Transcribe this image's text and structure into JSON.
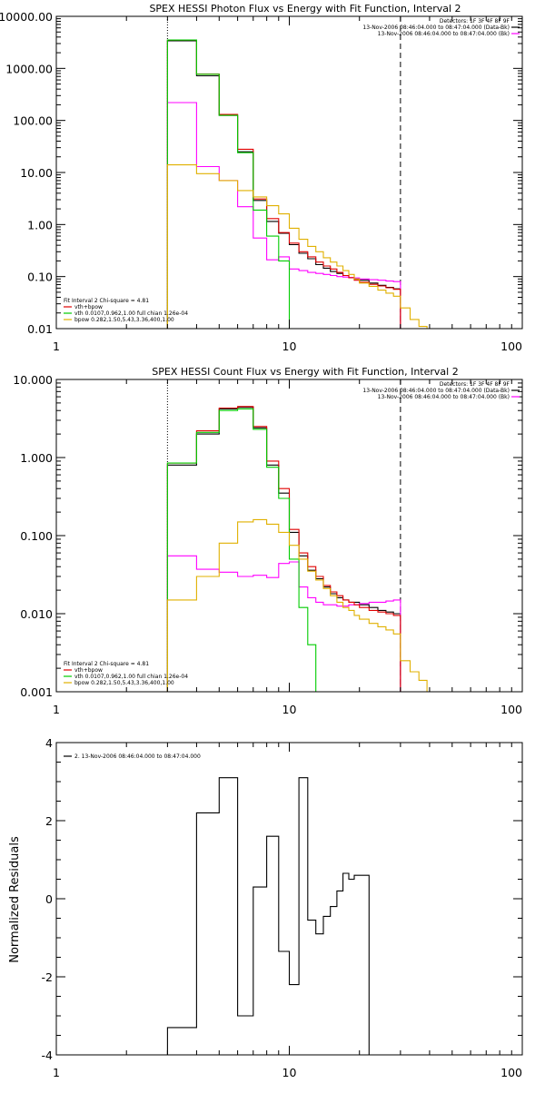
{
  "colors": {
    "axes": "#000000",
    "data": "#000000",
    "total": "#e00000",
    "vth": "#00cc00",
    "bpow": "#e0b000",
    "background": "#ff00ff"
  },
  "chart_data": [
    {
      "type": "line",
      "title": "SPEX HESSI Photon Flux vs Energy with Fit Function, Interval 2",
      "xscale": "log",
      "yscale": "log",
      "xlim": [
        1,
        100
      ],
      "ylim": [
        0.01,
        10000
      ],
      "xticks": [
        "1",
        "10",
        "100"
      ],
      "yticks": [
        {
          "v": 0.01,
          "label": "0.01"
        },
        {
          "v": 0.1,
          "label": "0.10"
        },
        {
          "v": 1,
          "label": "1.00"
        },
        {
          "v": 10,
          "label": "10.00"
        },
        {
          "v": 100,
          "label": "100.00"
        },
        {
          "v": 1000,
          "label": "1000.00"
        },
        {
          "v": 10000,
          "label": "10000.00"
        }
      ],
      "vlines": [
        {
          "x": 3,
          "style": "dotted"
        },
        {
          "x": 30,
          "style": "dashed"
        }
      ],
      "legend_tr": [
        "Detectors: 1F 3F 4F 8F 9F",
        "13-Nov-2006 08:46:04.000 to 08:47:04.000 (Data-Bk)",
        "13-Nov-2006 08:46:04.000 to 08:47:04.000 (Bk)"
      ],
      "legend_bl": [
        "Fit Interval 2   Chi-square = 4.81",
        "vth+bpow",
        "vth 0.0107,0.962,1.00  full chian 1.26e-04",
        "bpow 0.282,1.50,5.43,3.36,400,1.00"
      ],
      "edges": [
        3,
        4,
        5,
        6,
        7,
        8,
        9,
        10,
        11,
        12,
        13,
        14,
        15,
        16,
        17,
        18,
        19,
        20,
        22,
        24,
        26,
        28,
        30
      ],
      "series": [
        {
          "name": "13-Nov-2006 08:46:04.000 to 08:47:04.000 (Data-Bk)",
          "color": "#000000",
          "values": [
            3400,
            720,
            125,
            25,
            2.9,
            1.15,
            0.68,
            0.41,
            0.28,
            0.22,
            0.17,
            0.145,
            0.125,
            0.115,
            0.105,
            0.095,
            0.09,
            0.085,
            0.075,
            0.068,
            0.062,
            0.058
          ]
        },
        {
          "name": "13-Nov-2006 08:46:04.000 to 08:47:04.000 (Bk)",
          "color": "#ff00ff",
          "values": [
            220,
            13,
            7,
            2.2,
            0.55,
            0.21,
            0.24,
            0.14,
            0.13,
            0.12,
            0.115,
            0.11,
            0.105,
            0.1,
            0.098,
            0.096,
            0.094,
            0.09,
            0.087,
            0.085,
            0.082,
            0.08
          ]
        },
        {
          "name": "vth+bpow",
          "color": "#e00000",
          "values": [
            3500,
            780,
            130,
            28,
            3.1,
            1.3,
            0.7,
            0.44,
            0.3,
            0.24,
            0.19,
            0.16,
            0.14,
            0.12,
            0.105,
            0.095,
            0.085,
            0.078,
            0.071,
            0.066,
            0.061,
            0.057
          ]
        },
        {
          "name": "vth",
          "color": "#00cc00",
          "values": [
            3500,
            770,
            125,
            24,
            1.9,
            0.6,
            0.2,
            0.01
          ]
        },
        {
          "name": "bpow",
          "color": "#e0b000",
          "values": [
            14,
            9.5,
            7,
            4.5,
            3.4,
            2.3,
            1.6,
            0.85,
            0.52,
            0.38,
            0.3,
            0.23,
            0.19,
            0.16,
            0.13,
            0.11,
            0.09,
            0.075,
            0.065,
            0.055,
            0.048,
            0.042,
            0.025,
            0.015,
            0.011,
            0.008
          ]
        }
      ]
    },
    {
      "type": "line",
      "title": "SPEX HESSI Count Flux vs Energy with Fit Function, Interval 2",
      "xscale": "log",
      "yscale": "log",
      "xlim": [
        1,
        100
      ],
      "ylim": [
        0.001,
        10
      ],
      "xticks": [
        "1",
        "10",
        "100"
      ],
      "yticks": [
        {
          "v": 0.001,
          "label": "0.001"
        },
        {
          "v": 0.01,
          "label": "0.010"
        },
        {
          "v": 0.1,
          "label": "0.100"
        },
        {
          "v": 1,
          "label": "1.000"
        },
        {
          "v": 10,
          "label": "10.000"
        }
      ],
      "vlines": [
        {
          "x": 3,
          "style": "dotted"
        },
        {
          "x": 30,
          "style": "dashed"
        }
      ],
      "legend_tr": [
        "Detectors: 1F 3F 4F 8F 9F",
        "13-Nov-2006 08:46:04.000 to 08:47:04.000 (Data-Bk)",
        "13-Nov-2006 08:46:04.000 to 08:47:04.000 (Bk)"
      ],
      "legend_bl": [
        "Fit Interval 2   Chi-square = 4.81",
        "vth+bpow",
        "vth 0.0107,0.962,1.00  full chian 1.26e-04",
        "bpow 0.282,1.50,5.43,3.36,400,1.00"
      ],
      "edges": [
        3,
        4,
        5,
        6,
        7,
        8,
        9,
        10,
        11,
        12,
        13,
        14,
        15,
        16,
        17,
        18,
        19,
        20,
        22,
        24,
        26,
        28,
        30
      ],
      "series": [
        {
          "name": "13-Nov-2006 08:46:04.000 to 08:47:04.000 (Data-Bk)",
          "color": "#000000",
          "values": [
            0.8,
            2.0,
            4.2,
            4.4,
            2.4,
            0.8,
            0.35,
            0.11,
            0.055,
            0.036,
            0.028,
            0.022,
            0.018,
            0.016,
            0.015,
            0.014,
            0.014,
            0.013,
            0.012,
            0.011,
            0.0105,
            0.01
          ]
        },
        {
          "name": "13-Nov-2006 08:46:04.000 to 08:47:04.000 (Bk)",
          "color": "#ff00ff",
          "values": [
            0.055,
            0.037,
            0.034,
            0.03,
            0.031,
            0.029,
            0.044,
            0.046,
            0.022,
            0.016,
            0.014,
            0.013,
            0.013,
            0.0125,
            0.0125,
            0.013,
            0.013,
            0.0135,
            0.014,
            0.014,
            0.0145,
            0.015
          ]
        },
        {
          "name": "vth+bpow",
          "color": "#e00000",
          "values": [
            0.85,
            2.2,
            4.3,
            4.5,
            2.5,
            0.9,
            0.4,
            0.12,
            0.06,
            0.04,
            0.03,
            0.023,
            0.019,
            0.017,
            0.015,
            0.014,
            0.013,
            0.012,
            0.011,
            0.0105,
            0.01,
            0.0095
          ]
        },
        {
          "name": "vth",
          "color": "#00cc00",
          "values": [
            0.85,
            2.1,
            4.0,
            4.2,
            2.3,
            0.75,
            0.3,
            0.05,
            0.012,
            0.004,
            0.001
          ]
        },
        {
          "name": "bpow",
          "color": "#e0b000",
          "values": [
            0.015,
            0.03,
            0.08,
            0.15,
            0.16,
            0.14,
            0.11,
            0.075,
            0.05,
            0.035,
            0.027,
            0.021,
            0.017,
            0.014,
            0.012,
            0.011,
            0.0095,
            0.0085,
            0.0075,
            0.0068,
            0.0062,
            0.0055,
            0.0025,
            0.0018,
            0.0014,
            0.001
          ]
        }
      ]
    },
    {
      "type": "line",
      "title": "",
      "xscale": "log",
      "yscale": "linear",
      "xlim": [
        1,
        100
      ],
      "ylim": [
        -4,
        4
      ],
      "xticks": [
        "1",
        "10",
        "100"
      ],
      "yticks": [
        {
          "v": -4,
          "label": "-4"
        },
        {
          "v": -2,
          "label": "-2"
        },
        {
          "v": 0,
          "label": "0"
        },
        {
          "v": 2,
          "label": "2"
        },
        {
          "v": 4,
          "label": "4"
        }
      ],
      "ylabel": "Normalized Residuals",
      "legend_tl": [
        "2. 13-Nov-2006 08:46:04.000 to 08:47:04.000"
      ],
      "edges": [
        3,
        4,
        5,
        6,
        7,
        8,
        9,
        10,
        11,
        12,
        13,
        14,
        15,
        16,
        17,
        18,
        19,
        20,
        22,
        24,
        26,
        28,
        30
      ],
      "series": [
        {
          "name": "2. 13-Nov-2006 08:46:04.000 to 08:47:04.000",
          "color": "#000000",
          "values": [
            -3.3,
            2.2,
            3.1,
            -3.0,
            0.3,
            1.6,
            -1.35,
            -2.2,
            3.1,
            -0.55,
            -0.9,
            -0.45,
            -0.2,
            0.2,
            0.65,
            0.5,
            0.6,
            0.6
          ]
        }
      ]
    }
  ]
}
